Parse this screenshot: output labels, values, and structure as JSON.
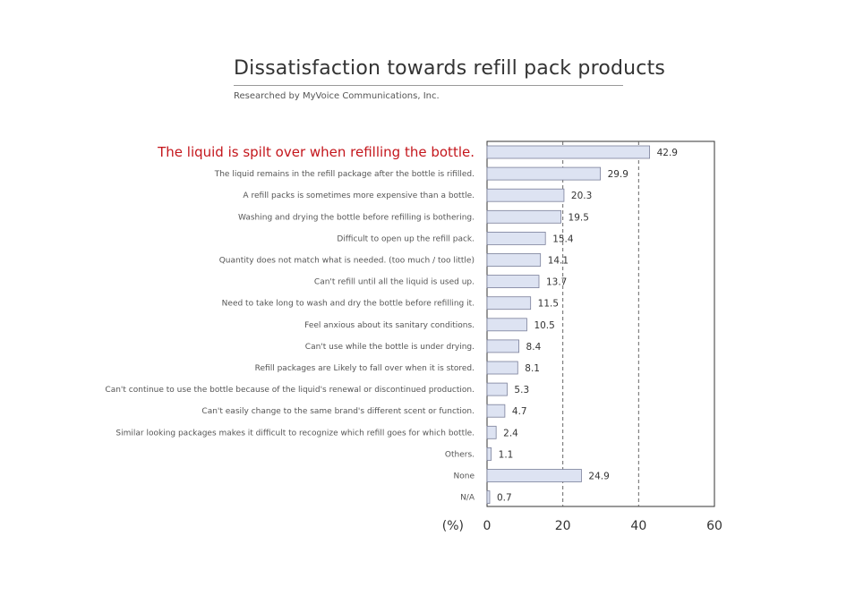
{
  "header": {
    "title": "Dissatisfaction towards refill pack products",
    "subtitle": "Researched by MyVoice Communications, Inc."
  },
  "colors": {
    "bar_fill": "#dde3f2",
    "bar_stroke": "#7a7f9a",
    "highlight_label": "#c4161c",
    "grid_dash": "#666666"
  },
  "chart_data": {
    "type": "bar",
    "orientation": "horizontal",
    "title": "Dissatisfaction towards refill pack products",
    "unit_label": "(%)",
    "xlim": [
      0,
      60
    ],
    "ticks": [
      0,
      20,
      40,
      60
    ],
    "grid": "dashed vertical lines at 20 and 40",
    "categories": [
      "The liquid is spilt over when refilling the bottle.",
      "The liquid remains in the refill package after the bottle is rifilled.",
      "A refill packs is sometimes more expensive than a bottle.",
      "Washing and drying the bottle before refilling is bothering.",
      "Difficult to open up the refill pack.",
      "Quantity does not match what is needed. (too much / too little)",
      "Can't refill until all the liquid is used up.",
      "Need to take long to wash and dry the bottle before refilling it.",
      "Feel anxious about its sanitary conditions.",
      "Can't use while the bottle is under drying.",
      "Refill packages are Likely to fall over when it is stored.",
      "Can't continue to use the bottle because of the liquid's renewal or discontinued production.",
      "Can't easily change to the same brand's different scent or function.",
      "Similar looking packages makes it difficult to recognize which refill goes for which bottle.",
      "Others.",
      "None",
      "N/A"
    ],
    "values": [
      42.9,
      29.9,
      20.3,
      19.5,
      15.4,
      14.1,
      13.7,
      11.5,
      10.5,
      8.4,
      8.1,
      5.3,
      4.7,
      2.4,
      1.1,
      24.9,
      0.7
    ],
    "value_labels": [
      "42.9",
      "29.9",
      "20.3",
      "19.5",
      "15.4",
      "14.1",
      "13.7",
      "11.5",
      "10.5",
      "8.4",
      "8.1",
      "5.3",
      "4.7",
      "2.4",
      "1.1",
      "24.9",
      "0.7"
    ],
    "tick_labels": [
      "0",
      "20",
      "40",
      "60"
    ],
    "highlighted_index": 0
  }
}
